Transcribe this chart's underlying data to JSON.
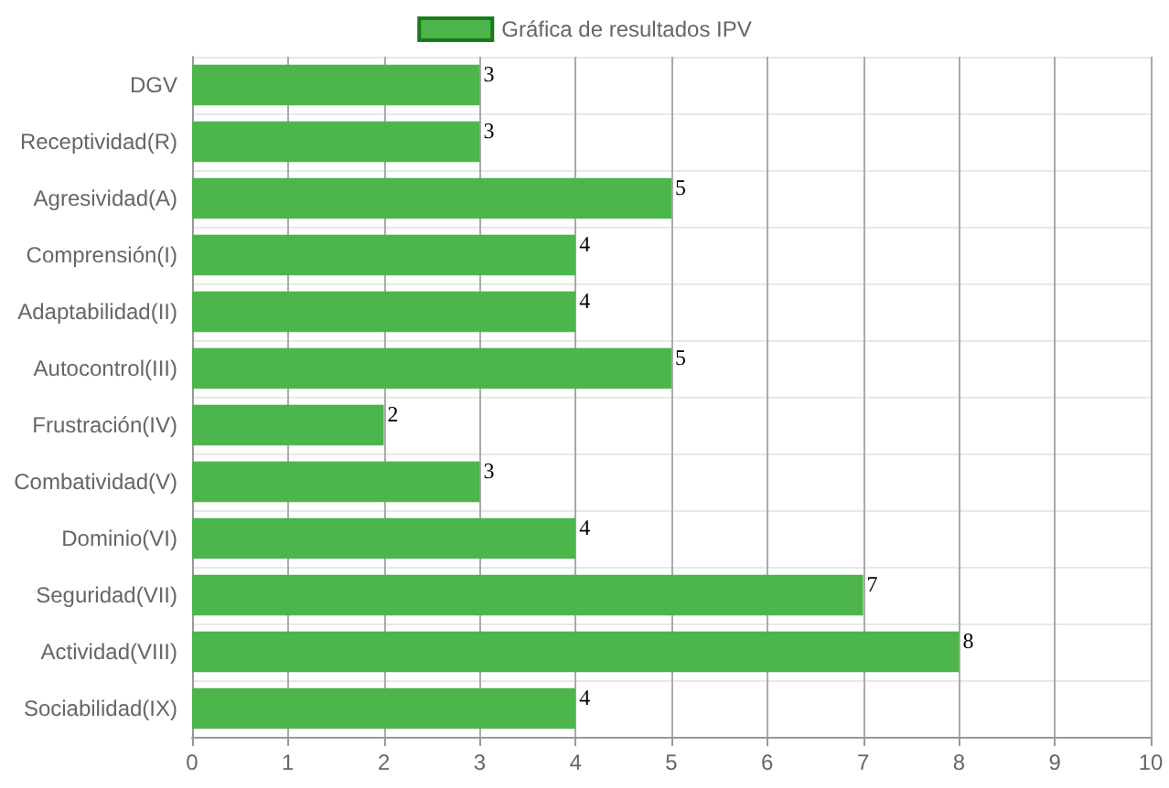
{
  "chart_data": {
    "type": "bar",
    "orientation": "horizontal",
    "categories": [
      "DGV",
      "Receptividad(R)",
      "Agresividad(A)",
      "Comprensión(I)",
      "Adaptabilidad(II)",
      "Autocontrol(III)",
      "Frustración(IV)",
      "Combatividad(V)",
      "Dominio(VI)",
      "Seguridad(VII)",
      "Actividad(VIII)",
      "Sociabilidad(IX)"
    ],
    "series": [
      {
        "name": "Gráfica de resultados IPV",
        "color": "#4cb54c",
        "values": [
          3,
          3,
          5,
          4,
          4,
          5,
          2,
          3,
          4,
          7,
          8,
          4
        ]
      }
    ],
    "xlim": [
      0,
      10
    ],
    "xticks": [
      0,
      1,
      2,
      3,
      4,
      5,
      6,
      7,
      8,
      9,
      10
    ],
    "grid": true,
    "legend": "top",
    "data_labels": true
  }
}
